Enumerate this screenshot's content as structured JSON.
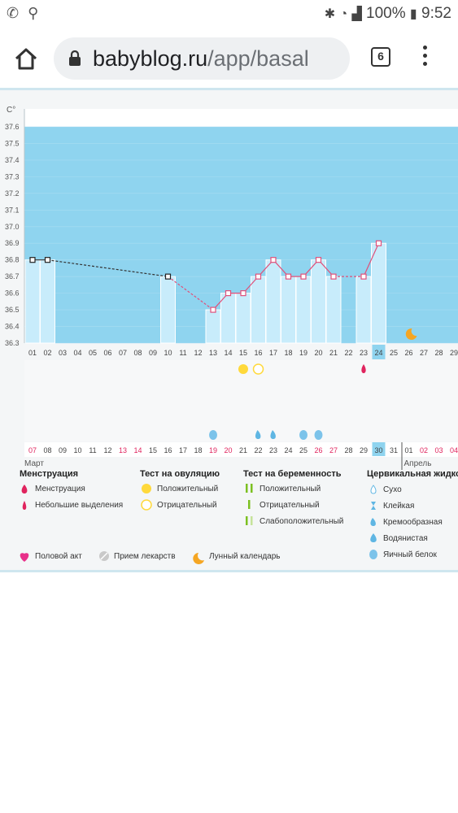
{
  "status_bar": {
    "battery": "100%",
    "time": "9:52"
  },
  "browser": {
    "url_host": "babyblog.ru",
    "url_path": "/app/basal",
    "tab_count": "6"
  },
  "chart_data": {
    "type": "line",
    "unit": "C°",
    "ylim": [
      36.3,
      37.6
    ],
    "yticks": [
      "37.6",
      "37.5",
      "37.4",
      "37.3",
      "37.2",
      "37.1",
      "37.0",
      "36.9",
      "36.8",
      "36.7",
      "36.6",
      "36.5",
      "36.4",
      "36.3"
    ],
    "x_top": [
      "01",
      "02",
      "03",
      "04",
      "05",
      "06",
      "07",
      "08",
      "09",
      "10",
      "11",
      "12",
      "13",
      "14",
      "15",
      "16",
      "17",
      "18",
      "19",
      "20",
      "21",
      "22",
      "23",
      "24",
      "25",
      "26",
      "27",
      "28",
      "29"
    ],
    "x_bottom": [
      "07",
      "08",
      "09",
      "10",
      "11",
      "12",
      "13",
      "14",
      "15",
      "16",
      "17",
      "18",
      "19",
      "20",
      "21",
      "22",
      "23",
      "24",
      "25",
      "26",
      "27",
      "28",
      "29",
      "30",
      "31",
      "01",
      "02",
      "03",
      "04"
    ],
    "x_bottom_red": [
      0,
      6,
      7,
      12,
      13,
      19,
      20,
      26,
      27,
      28
    ],
    "highlight_index": 23,
    "month_left": "Март",
    "month_right": "Апрель",
    "values": [
      36.8,
      36.8,
      null,
      null,
      null,
      null,
      null,
      null,
      null,
      36.7,
      null,
      null,
      36.5,
      36.6,
      36.6,
      36.7,
      36.8,
      36.7,
      36.7,
      36.8,
      36.7,
      null,
      36.7,
      36.9,
      null,
      null,
      null,
      null,
      null
    ],
    "ovulation_positive": [
      14
    ],
    "ovulation_negative": [
      15
    ],
    "menstruation_spot": [
      22
    ],
    "moon": [
      25
    ],
    "cervical_egg_white": [
      12,
      18,
      19
    ],
    "cervical_creamy": [
      15,
      16
    ],
    "colors": {
      "bg": "#8fd4ef",
      "bar": "#c8ecfb",
      "line": "#e0507a",
      "negative_red": "#e0245e",
      "highlight": "#8fd4ef"
    }
  },
  "legend": {
    "menstruation": {
      "title": "Менструация",
      "items": [
        "Менструация",
        "Небольшие выделения"
      ]
    },
    "ovulation": {
      "title": "Тест на овуляцию",
      "items": [
        "Положительный",
        "Отрицательный"
      ]
    },
    "pregnancy": {
      "title": "Тест на беременность",
      "items": [
        "Положительный",
        "Отрицательный",
        "Слабоположительный"
      ]
    },
    "cervical": {
      "title": "Цервикальная жидко",
      "items": [
        "Сухо",
        "Клейкая",
        "Кремообразная",
        "Водянистая",
        "Яичный белок"
      ]
    },
    "other": [
      "Половой акт",
      "Прием лекарств",
      "Лунный календарь"
    ]
  }
}
